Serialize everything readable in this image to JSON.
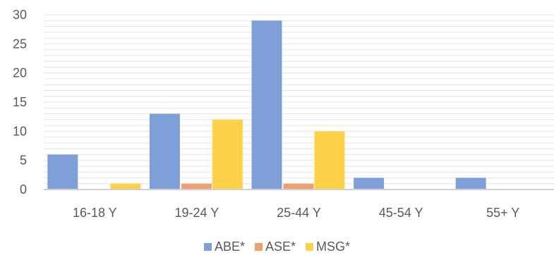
{
  "chart_data": {
    "type": "bar",
    "title": "",
    "xlabel": "",
    "ylabel": "",
    "categories": [
      "16-18 Y",
      "19-24 Y",
      "25-44 Y",
      "45-54 Y",
      "55+ Y"
    ],
    "series": [
      {
        "name": "ABE*",
        "color": "#7f9fd9",
        "values": [
          6,
          13,
          29,
          2,
          2
        ]
      },
      {
        "name": "ASE*",
        "color": "#f0a070",
        "values": [
          0,
          1,
          1,
          0,
          0
        ]
      },
      {
        "name": "MSG*",
        "color": "#fdd24a",
        "values": [
          1,
          12,
          10,
          0,
          0
        ]
      }
    ],
    "ylim": [
      0,
      30
    ],
    "yticks": [
      "0",
      "5",
      "10",
      "15",
      "20",
      "25",
      "30"
    ],
    "grid": true,
    "legend_position": "bottom"
  }
}
